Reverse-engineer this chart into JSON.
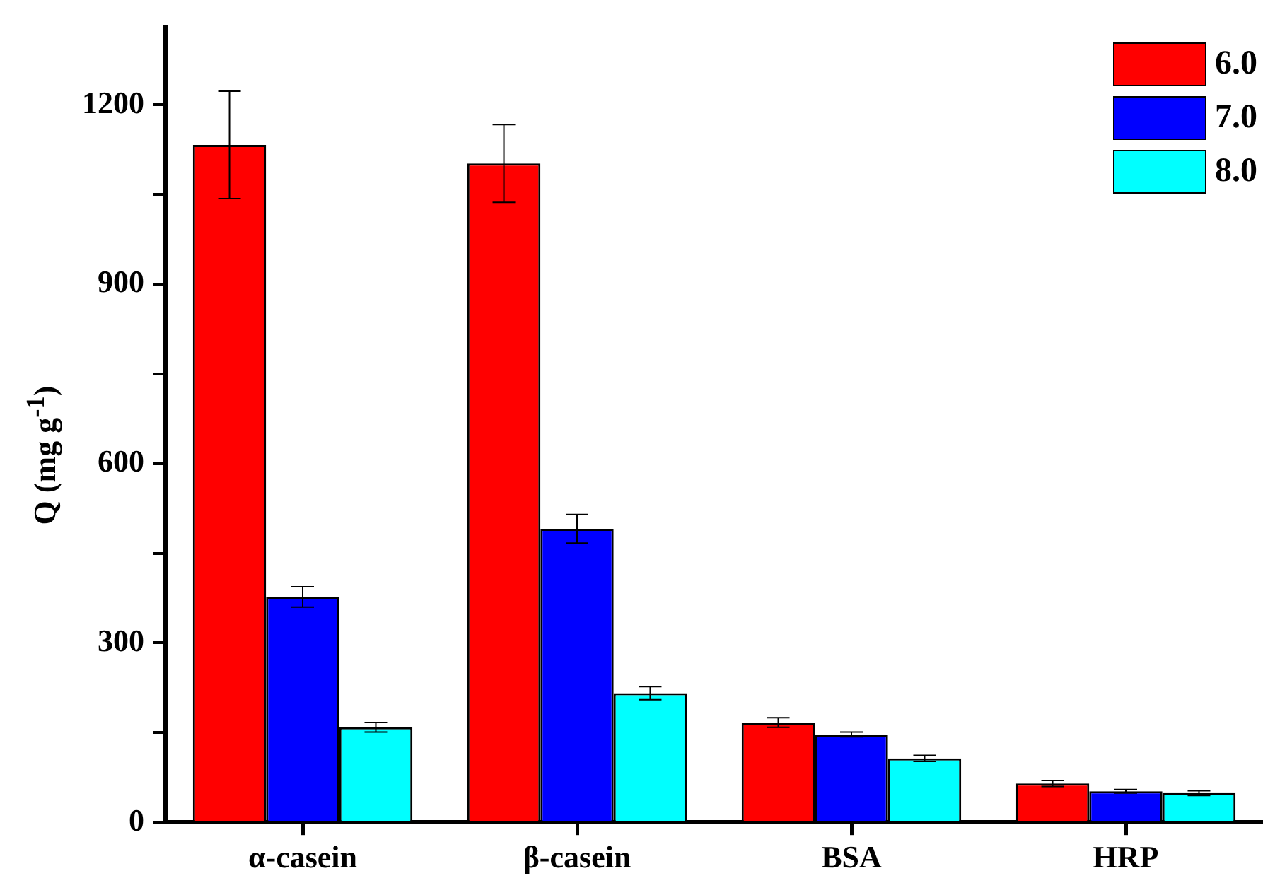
{
  "chart_data": {
    "type": "bar",
    "ylabel": "Q (mg g$^{-1}$)",
    "categories": [
      "α-casein",
      "β-casein",
      "BSA",
      "HRP"
    ],
    "series": [
      {
        "name": "6.0",
        "color": "#ff0000",
        "values": [
          1133,
          1102,
          167,
          65
        ],
        "errors": [
          90,
          65,
          8,
          5
        ]
      },
      {
        "name": "7.0",
        "color": "#0000ff",
        "values": [
          377,
          491,
          147,
          52
        ],
        "errors": [
          17,
          24,
          4,
          3
        ]
      },
      {
        "name": "8.0",
        "color": "#00ffff",
        "values": [
          159,
          216,
          107,
          49
        ],
        "errors": [
          8,
          11,
          5,
          4
        ]
      }
    ],
    "ylim": [
      0,
      1330
    ],
    "yticks": [
      0,
      {
        "value": 150,
        "label": null
      },
      300,
      {
        "value": 450,
        "label": null
      },
      600,
      {
        "value": 750,
        "label": null
      },
      900,
      {
        "value": 1050,
        "label": null
      },
      1200
    ],
    "grid": false,
    "legend": "top right"
  }
}
